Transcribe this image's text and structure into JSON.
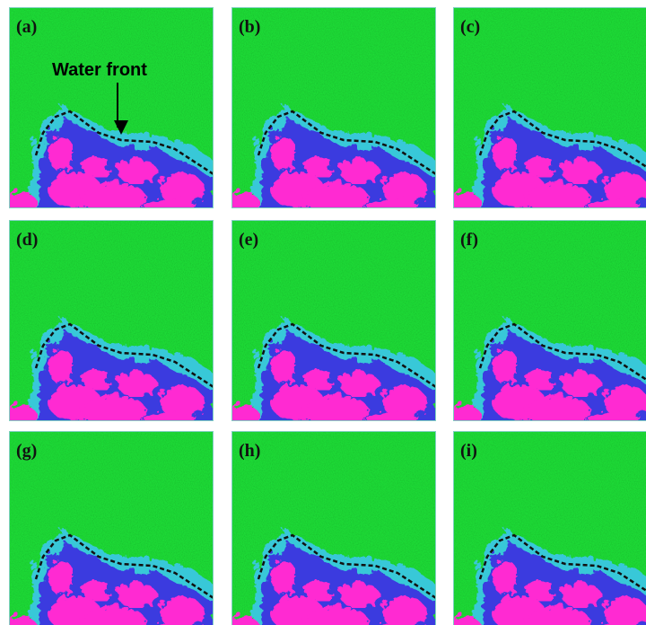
{
  "panels": [
    {
      "label": "(a)"
    },
    {
      "label": "(b)"
    },
    {
      "label": "(c)"
    },
    {
      "label": "(d)"
    },
    {
      "label": "(e)"
    },
    {
      "label": "(f)"
    },
    {
      "label": "(g)"
    },
    {
      "label": "(h)"
    },
    {
      "label": "(i)"
    }
  ],
  "annotation": "Water front"
}
